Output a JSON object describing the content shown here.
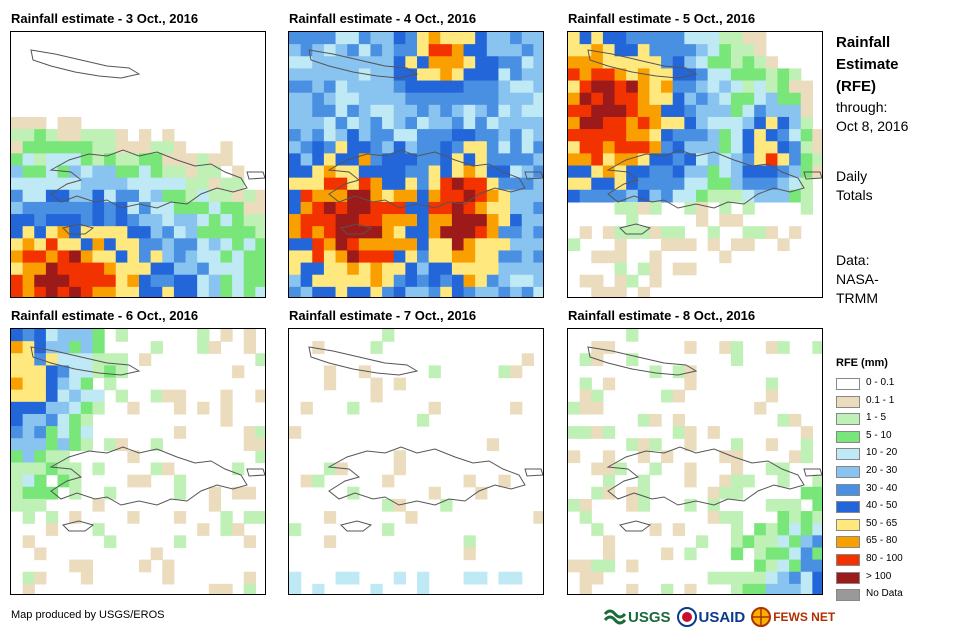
{
  "panels": [
    {
      "title": "Rainfall estimate - 3 Oct., 2016",
      "day": "3"
    },
    {
      "title": "Rainfall estimate - 4 Oct., 2016",
      "day": "4"
    },
    {
      "title": "Rainfall estimate - 5 Oct., 2016",
      "day": "5"
    },
    {
      "title": "Rainfall estimate - 6 Oct., 2016",
      "day": "6"
    },
    {
      "title": "Rainfall estimate - 7 Oct., 2016",
      "day": "7"
    },
    {
      "title": "Rainfall estimate - 8 Oct., 2016",
      "day": "8"
    }
  ],
  "side": {
    "title_lines": [
      "Rainfall",
      "Estimate",
      "(RFE)"
    ],
    "through_label": "through:",
    "through_date": "Oct 8, 2016",
    "totals_lines": [
      "Daily",
      "Totals"
    ],
    "data_lines": [
      "Data:",
      "NASA-",
      "TRMM"
    ]
  },
  "legend": {
    "title": "RFE (mm)",
    "classes": [
      {
        "label": "0 - 0.1",
        "color": "#ffffff"
      },
      {
        "label": "0.1 - 1",
        "color": "#ecdcbe"
      },
      {
        "label": "1 - 5",
        "color": "#bff0b6"
      },
      {
        "label": "5 - 10",
        "color": "#78e678"
      },
      {
        "label": "10 - 20",
        "color": "#bfe9f5"
      },
      {
        "label": "20 - 30",
        "color": "#89c3ef"
      },
      {
        "label": "30 - 40",
        "color": "#4a90e2"
      },
      {
        "label": "40 - 50",
        "color": "#2366d9"
      },
      {
        "label": "50 - 65",
        "color": "#ffe97f"
      },
      {
        "label": "65 - 80",
        "color": "#f9a000"
      },
      {
        "label": "80 - 100",
        "color": "#f23300"
      },
      {
        "label": "> 100",
        "color": "#9c1a1a"
      },
      {
        "label": "No Data",
        "color": "#999999"
      }
    ]
  },
  "credit": "Map produced by USGS/EROS",
  "logos": [
    "USGS",
    "USAID",
    "FEWS NET"
  ]
}
